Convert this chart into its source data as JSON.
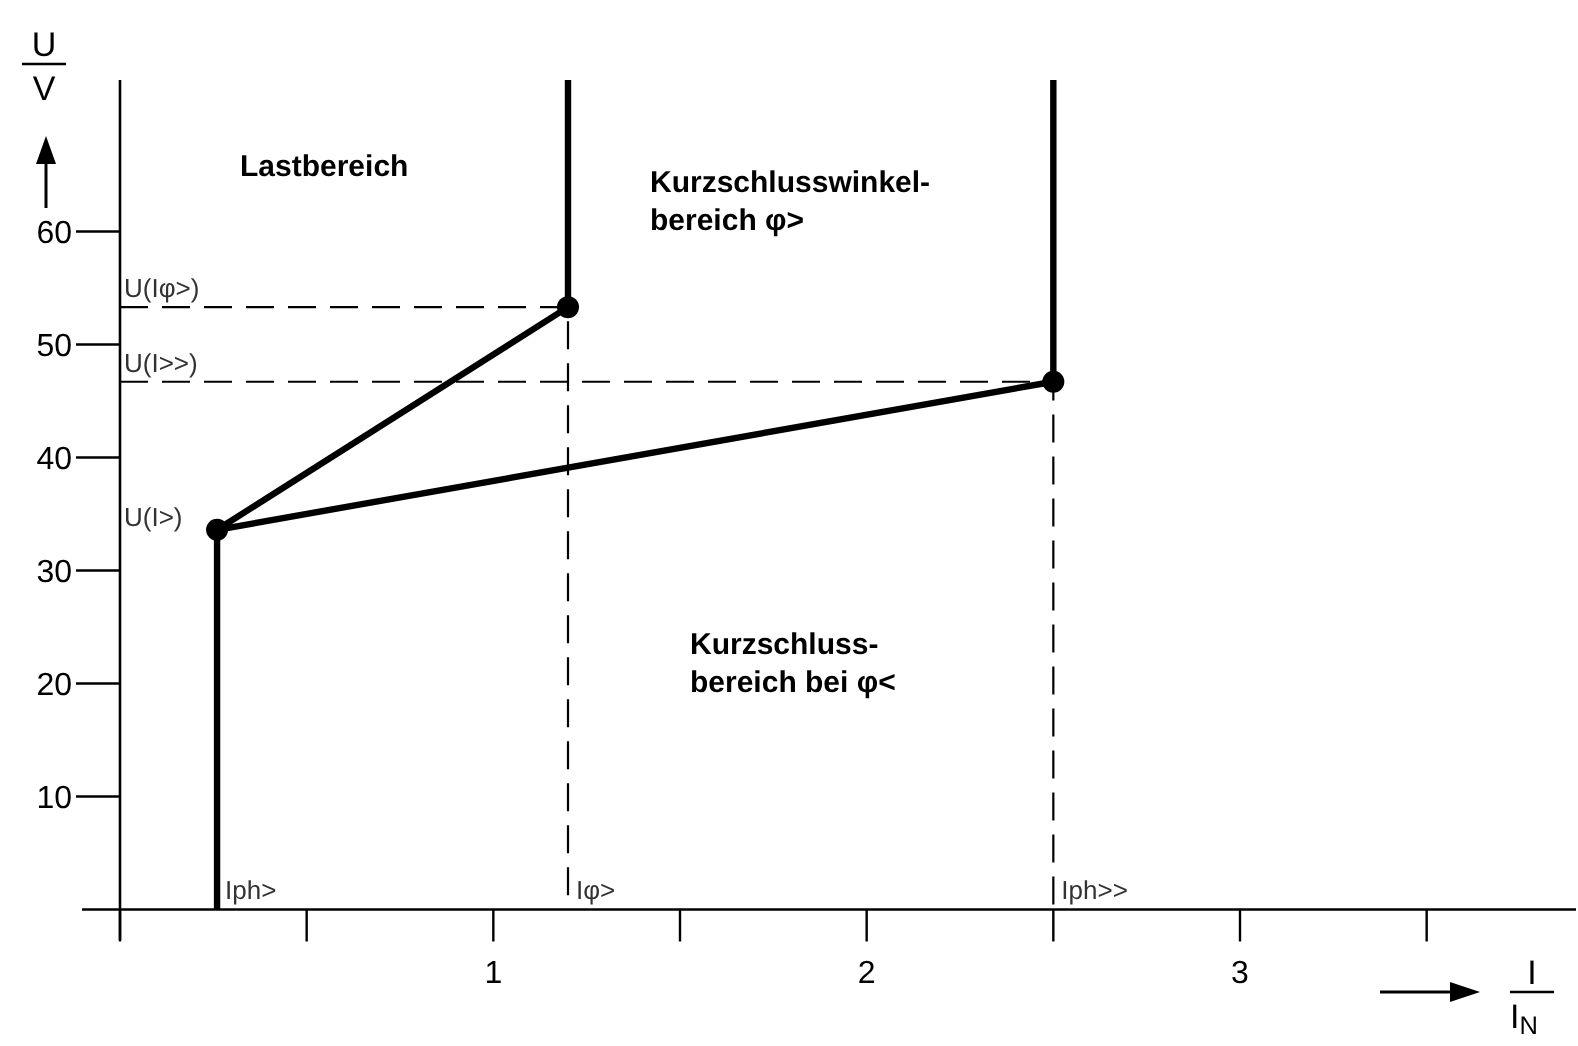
{
  "chart_data": {
    "type": "line",
    "xlabel": "I/I$_{N}$",
    "ylabel": "U/V",
    "xlim": [
      0,
      3.9
    ],
    "ylim": [
      -2.7,
      73.4
    ],
    "xticks": [
      {
        "value": 0,
        "label": null
      },
      {
        "value": 0.5,
        "label": null
      },
      1,
      {
        "value": 1.5,
        "label": null
      },
      2,
      {
        "value": 2.5,
        "label": null
      },
      3,
      {
        "value": 3.5,
        "label": null
      }
    ],
    "yticks": [
      10,
      20,
      30,
      40,
      50,
      60
    ],
    "grid": false,
    "series": [
      {
        "color": "#000000",
        "x": [
          0.26,
          0.26,
          1.2,
          1.2
        ],
        "values": [
          0,
          33.6,
          53.3,
          73.4
        ],
        "marker": "none",
        "line_style": "solid"
      },
      {
        "color": "#000000",
        "x": [
          0.26,
          2.5,
          2.5
        ],
        "values": [
          33.6,
          46.7,
          73.4
        ],
        "marker": "none",
        "line_style": "solid"
      },
      {
        "color": "#000000",
        "x": [
          0,
          1.2,
          1.2
        ],
        "values": [
          53.3,
          53.3,
          0
        ],
        "marker": "none",
        "line_style": "dashed"
      },
      {
        "color": "#000000",
        "x": [
          0,
          2.5,
          2.5
        ],
        "values": [
          46.7,
          46.7,
          0
        ],
        "marker": "none",
        "line_style": "dashed"
      },
      {
        "type": "scatter",
        "color": "#000000",
        "x": [
          0.26,
          1.2,
          2.5
        ],
        "values": [
          33.6,
          53.3,
          46.7
        ],
        "marker": "circle"
      }
    ],
    "annotations": [
      {
        "text": "U(Iφ>)",
        "x": 0,
        "y": 53.3
      },
      {
        "text": "U(I>>)",
        "x": 0,
        "y": 46.7
      },
      "U(I>)",
      {
        "text": "Iph>",
        "x": 0.26,
        "y": 0
      },
      {
        "text": "Iφ>",
        "x": 1.2,
        "y": 0
      },
      {
        "text": "Iph>>",
        "x": 2.5,
        "y": 0
      },
      "Lastbereich",
      "Kurzschlusswinkel-\nbereich φ>",
      "Kurzschluss-\nbereich bei φ<"
    ]
  }
}
